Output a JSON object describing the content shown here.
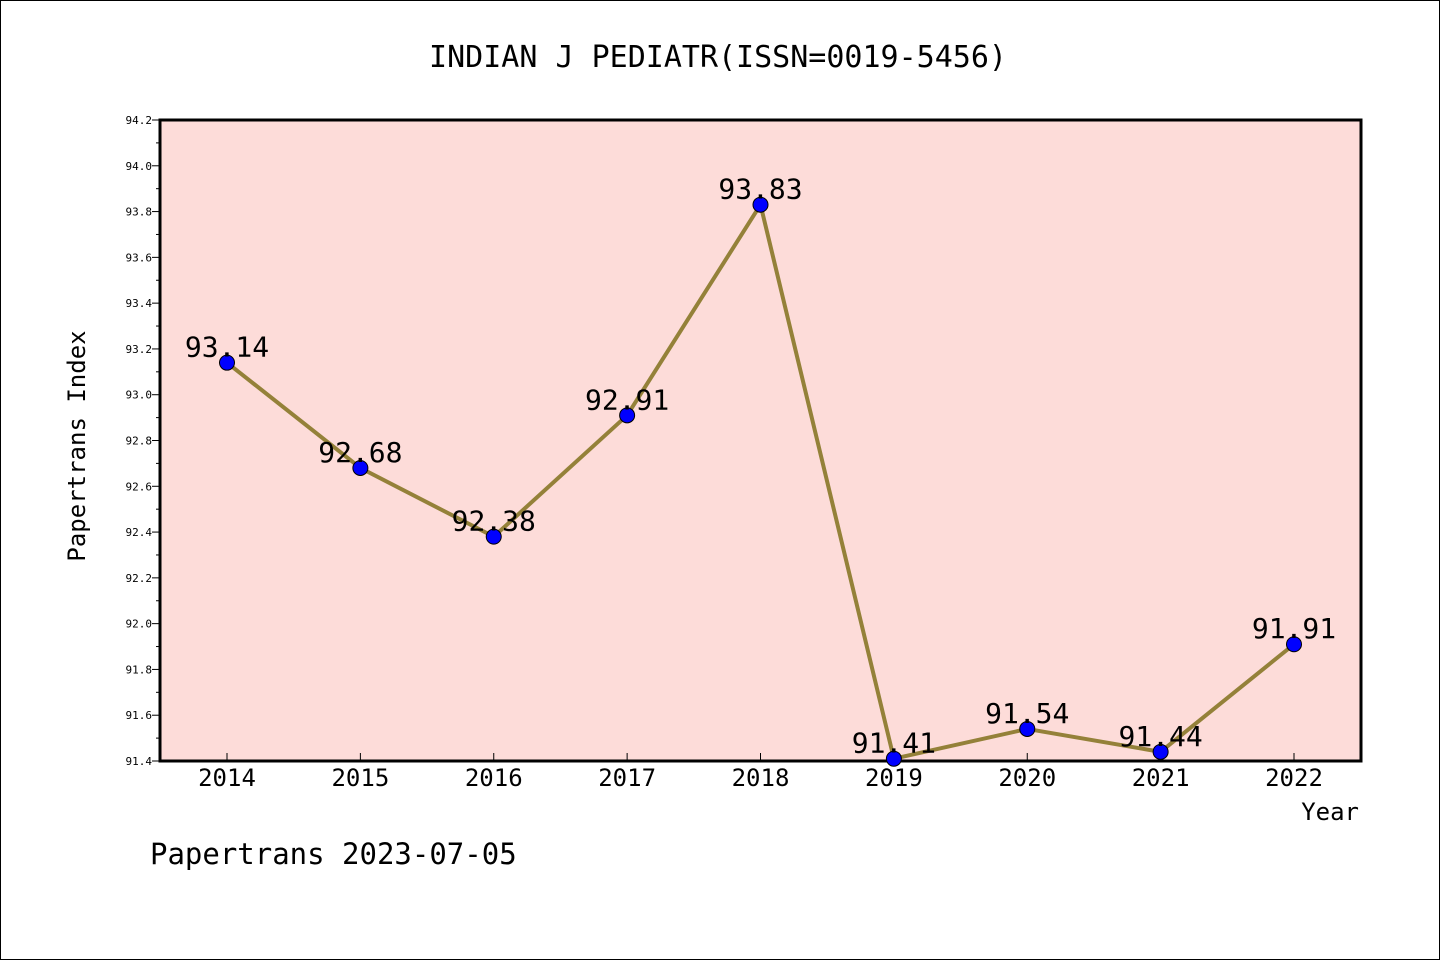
{
  "chart_data": {
    "type": "line",
    "title": "INDIAN J PEDIATR(ISSN=0019-5456)",
    "xlabel": "Year",
    "ylabel": "Papertrans Index",
    "footer": "Papertrans 2023-07-05",
    "categories": [
      "2014",
      "2015",
      "2016",
      "2017",
      "2018",
      "2019",
      "2020",
      "2021",
      "2022"
    ],
    "values": [
      93.14,
      92.68,
      92.38,
      92.91,
      93.83,
      91.41,
      91.54,
      91.44,
      91.91
    ],
    "data_labels": [
      "93.14",
      "92.68",
      "92.38",
      "92.91",
      "93.83",
      "91.41",
      "91.54",
      "91.44",
      "91.91"
    ],
    "ylim": [
      91.4,
      94.2
    ],
    "yticks": [
      "91.4",
      "91.6",
      "91.8",
      "92.0",
      "92.2",
      "92.4",
      "92.6",
      "92.8",
      "93.0",
      "93.2",
      "93.4",
      "93.6",
      "93.8",
      "94.0",
      "94.2"
    ],
    "grid": false,
    "legend": "none",
    "colors": {
      "plot_background": "#fddcd9",
      "line": "#948139",
      "marker": "#0000ff",
      "axis": "#000000"
    }
  }
}
